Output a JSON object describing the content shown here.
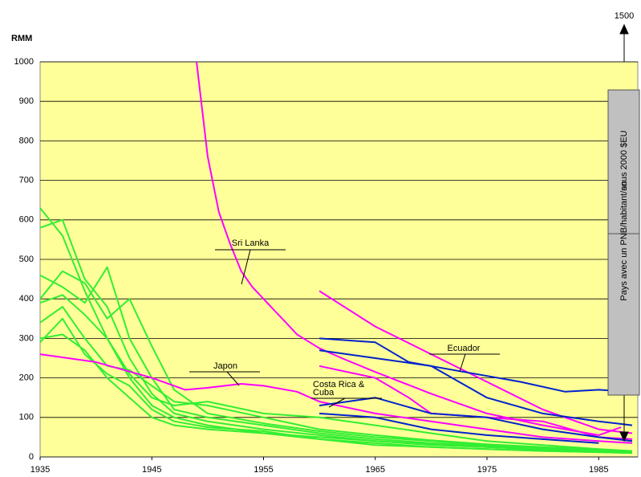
{
  "chart_data": {
    "type": "line",
    "y_label": "RMM",
    "xlim": [
      1935,
      1988.5
    ],
    "ylim": [
      0,
      1000
    ],
    "xticks": [
      1935,
      1945,
      1955,
      1965,
      1975,
      1985
    ],
    "yticks": [
      0,
      100,
      200,
      300,
      400,
      500,
      600,
      700,
      800,
      900,
      1000
    ],
    "grid": true,
    "series": [
      {
        "color": "#33ee33",
        "x": [
          1935,
          1937,
          1939,
          1941,
          1943,
          1945,
          1947,
          1950,
          1955,
          1960,
          1965,
          1970,
          1975,
          1980,
          1985,
          1988
        ],
        "values": [
          630,
          560,
          420,
          300,
          200,
          130,
          100,
          80,
          60,
          45,
          35,
          25,
          20,
          15,
          12,
          10
        ]
      },
      {
        "color": "#33ee33",
        "x": [
          1935,
          1937,
          1939,
          1941,
          1943,
          1945,
          1947,
          1950,
          1955,
          1960,
          1965,
          1970,
          1975,
          1980,
          1985,
          1988
        ],
        "values": [
          580,
          600,
          450,
          380,
          250,
          160,
          110,
          90,
          70,
          55,
          40,
          30,
          25,
          18,
          14,
          12
        ]
      },
      {
        "color": "#33ee33",
        "x": [
          1935,
          1937,
          1939,
          1941,
          1943,
          1945,
          1947,
          1950,
          1955,
          1960,
          1965,
          1970,
          1975,
          1980,
          1985,
          1988
        ],
        "values": [
          460,
          430,
          390,
          480,
          300,
          200,
          120,
          100,
          80,
          60,
          45,
          35,
          28,
          20,
          15,
          12
        ]
      },
      {
        "color": "#33ee33",
        "x": [
          1935,
          1937,
          1939,
          1941,
          1943,
          1945,
          1947,
          1950,
          1955,
          1960,
          1965,
          1970,
          1975,
          1980,
          1985,
          1988
        ],
        "values": [
          400,
          470,
          440,
          350,
          400,
          280,
          170,
          110,
          85,
          65,
          50,
          40,
          30,
          22,
          16,
          14
        ]
      },
      {
        "color": "#33ee33",
        "x": [
          1935,
          1937,
          1939,
          1941,
          1943,
          1945,
          1947,
          1950,
          1955,
          1960,
          1965,
          1970,
          1975,
          1980,
          1985,
          1988
        ],
        "values": [
          340,
          380,
          300,
          230,
          220,
          180,
          140,
          130,
          100,
          70,
          55,
          42,
          32,
          25,
          18,
          15
        ]
      },
      {
        "color": "#33ee33",
        "x": [
          1935,
          1937,
          1939,
          1941,
          1943,
          1945,
          1947,
          1950,
          1955,
          1960,
          1965,
          1970,
          1975,
          1980,
          1985,
          1988
        ],
        "values": [
          300,
          310,
          270,
          200,
          150,
          100,
          80,
          70,
          60,
          50,
          40,
          32,
          25,
          20,
          15,
          12
        ]
      },
      {
        "color": "#33ee33",
        "x": [
          1935,
          1937,
          1939,
          1941,
          1943,
          1945,
          1947,
          1950,
          1955,
          1960,
          1965,
          1970,
          1975,
          1980,
          1985,
          1988
        ],
        "values": [
          290,
          350,
          260,
          210,
          180,
          120,
          90,
          75,
          65,
          45,
          30,
          25,
          20,
          15,
          12,
          10
        ]
      },
      {
        "color": "#33ee33",
        "x": [
          1935,
          1937,
          1939,
          1941,
          1943,
          1945,
          1947,
          1950,
          1955,
          1960,
          1965,
          1970,
          1975,
          1980,
          1985,
          1988
        ],
        "values": [
          390,
          410,
          360,
          300,
          210,
          150,
          130,
          140,
          110,
          100,
          80,
          60,
          40,
          30,
          20,
          15
        ]
      },
      {
        "color": "#ff00ff",
        "x": [
          1949,
          1950,
          1951,
          1952,
          1953,
          1954,
          1955,
          1956,
          1957,
          1958,
          1960,
          1962,
          1965,
          1970,
          1975,
          1980,
          1985,
          1987
        ],
        "values": [
          1000,
          760,
          620,
          540,
          470,
          430,
          400,
          370,
          340,
          310,
          275,
          250,
          215,
          160,
          110,
          80,
          55,
          75
        ]
      },
      {
        "color": "#ff00ff",
        "x": [
          1935,
          1940,
          1945,
          1948,
          1950,
          1953,
          1955,
          1958,
          1960,
          1965,
          1970,
          1975,
          1980,
          1985,
          1988
        ],
        "values": [
          260,
          240,
          200,
          170,
          175,
          185,
          180,
          165,
          140,
          110,
          90,
          70,
          50,
          40,
          35
        ]
      },
      {
        "color": "#ff00ff",
        "x": [
          1960,
          1965,
          1970,
          1975,
          1980,
          1985,
          1988
        ],
        "values": [
          420,
          330,
          260,
          190,
          120,
          70,
          60
        ]
      },
      {
        "color": "#ff00ff",
        "x": [
          1960,
          1965,
          1968,
          1970,
          1975,
          1980,
          1985,
          1988
        ],
        "values": [
          230,
          200,
          150,
          110,
          100,
          90,
          50,
          45
        ]
      },
      {
        "color": "#0022cc",
        "x": [
          1960,
          1965,
          1968,
          1972,
          1978,
          1982,
          1985,
          1988
        ],
        "values": [
          300,
          290,
          240,
          220,
          190,
          165,
          170,
          165
        ]
      },
      {
        "color": "#0022cc",
        "x": [
          1960,
          1965,
          1970,
          1975,
          1980,
          1985,
          1988
        ],
        "values": [
          270,
          250,
          230,
          150,
          110,
          90,
          80
        ]
      },
      {
        "color": "#0022cc",
        "x": [
          1960,
          1965,
          1970,
          1975,
          1980,
          1985,
          1988
        ],
        "values": [
          130,
          150,
          110,
          100,
          70,
          50,
          40
        ]
      },
      {
        "color": "#0022cc",
        "x": [
          1960,
          1965,
          1970,
          1975,
          1980,
          1985
        ],
        "values": [
          110,
          100,
          70,
          55,
          45,
          35
        ]
      }
    ],
    "annotations": [
      "Sri Lanka",
      "Japon",
      "Costa Rica &",
      "Cuba",
      "Ecuador",
      "Pays avec un PNB/habitant/an",
      "sous 2000 $EU",
      "1500"
    ]
  }
}
